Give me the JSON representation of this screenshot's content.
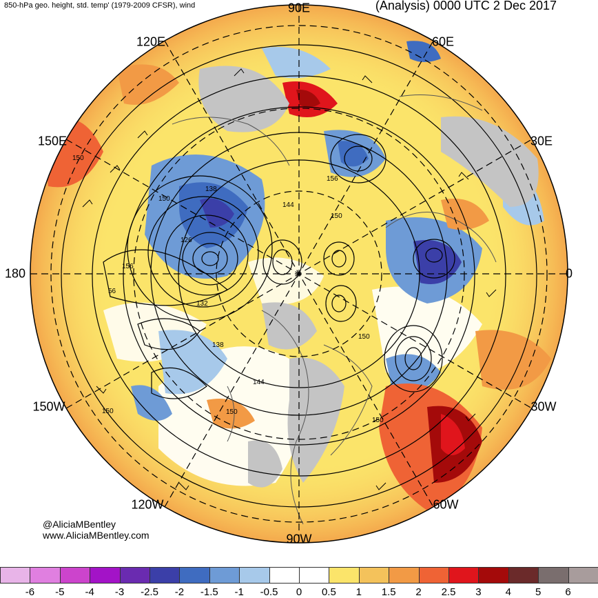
{
  "header": {
    "left_title": "850-hPa geo. height, std. temp' (1979-2009 CFSR), wind",
    "right_title": "(Analysis) 0000 UTC 2 Dec 2017"
  },
  "longitude_labels": {
    "e90": "90E",
    "e60": "60E",
    "e120": "120E",
    "e150": "150E",
    "e30": "30E",
    "lon180": "180",
    "lon0": "0",
    "w150": "150W",
    "w30": "30W",
    "w120": "120W",
    "w60": "60W",
    "w90": "90W"
  },
  "contour_labels": [
    "138",
    "150",
    "156",
    "144",
    "150",
    "126",
    "156",
    "56",
    "132",
    "138",
    "150",
    "144",
    "150",
    "150",
    "150",
    "150"
  ],
  "credits": {
    "handle": "@AliciaMBentley",
    "website": "www.AliciaMBentley.com"
  },
  "colorbar": {
    "ticks": [
      "-6",
      "-5",
      "-4",
      "-3",
      "-2.5",
      "-2",
      "-1.5",
      "-1",
      "-0.5",
      "0",
      "0.5",
      "1",
      "1.5",
      "2",
      "2.5",
      "3",
      "4",
      "5",
      "6"
    ],
    "colors": [
      "#e8b4e8",
      "#e07fe0",
      "#cc44cc",
      "#a313c7",
      "#6a2bb0",
      "#3b3fa8",
      "#3f6cc0",
      "#6e9bd6",
      "#a7c9ea",
      "#ffffff",
      "#ffffff",
      "#fbe46a",
      "#f4c25b",
      "#f29a45",
      "#ef6335",
      "#e0151c",
      "#a40a0a",
      "#6b2a2a",
      "#7a6e6e",
      "#a89c9c"
    ]
  }
}
